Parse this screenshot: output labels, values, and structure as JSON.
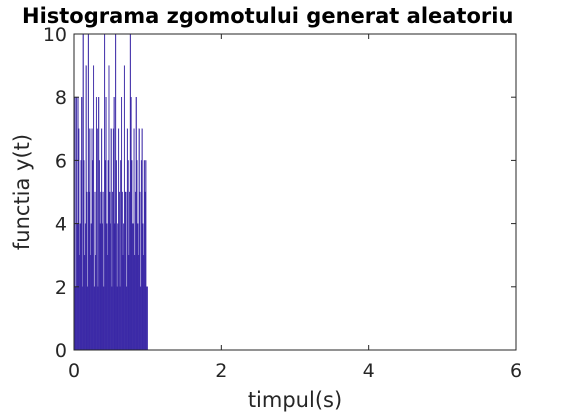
{
  "chart_data": {
    "type": "bar",
    "title": "Histograma zgomotului generat aleatoriu",
    "xlabel": "timpul(s)",
    "ylabel": "functia y(t)",
    "xlim": [
      0,
      6
    ],
    "ylim": [
      0,
      10
    ],
    "xticks": [
      0,
      2,
      4,
      6
    ],
    "yticks": [
      0,
      2,
      4,
      6,
      8,
      10
    ],
    "grid": false,
    "bar_color": "#3a28a6",
    "bin_width": 0.01,
    "x_start": 0.0,
    "values": [
      4,
      8,
      2,
      8,
      4,
      8,
      7,
      3,
      4,
      6,
      8,
      2,
      10,
      6,
      3,
      4,
      9,
      5,
      2,
      10,
      5,
      7,
      3,
      4,
      7,
      6,
      9,
      2,
      5,
      3,
      8,
      7,
      2,
      8,
      6,
      4,
      5,
      7,
      4,
      5,
      2,
      10,
      6,
      8,
      4,
      3,
      6,
      9,
      5,
      4,
      7,
      2,
      5,
      7,
      8,
      4,
      10,
      6,
      2,
      4,
      7,
      5,
      2,
      6,
      8,
      5,
      3,
      4,
      9,
      5,
      5,
      2,
      7,
      6,
      3,
      5,
      10,
      8,
      6,
      4,
      4,
      7,
      3,
      5,
      8,
      6,
      4,
      3,
      7,
      5,
      2,
      6,
      7,
      4,
      3,
      6,
      5,
      6,
      2,
      2
    ]
  }
}
